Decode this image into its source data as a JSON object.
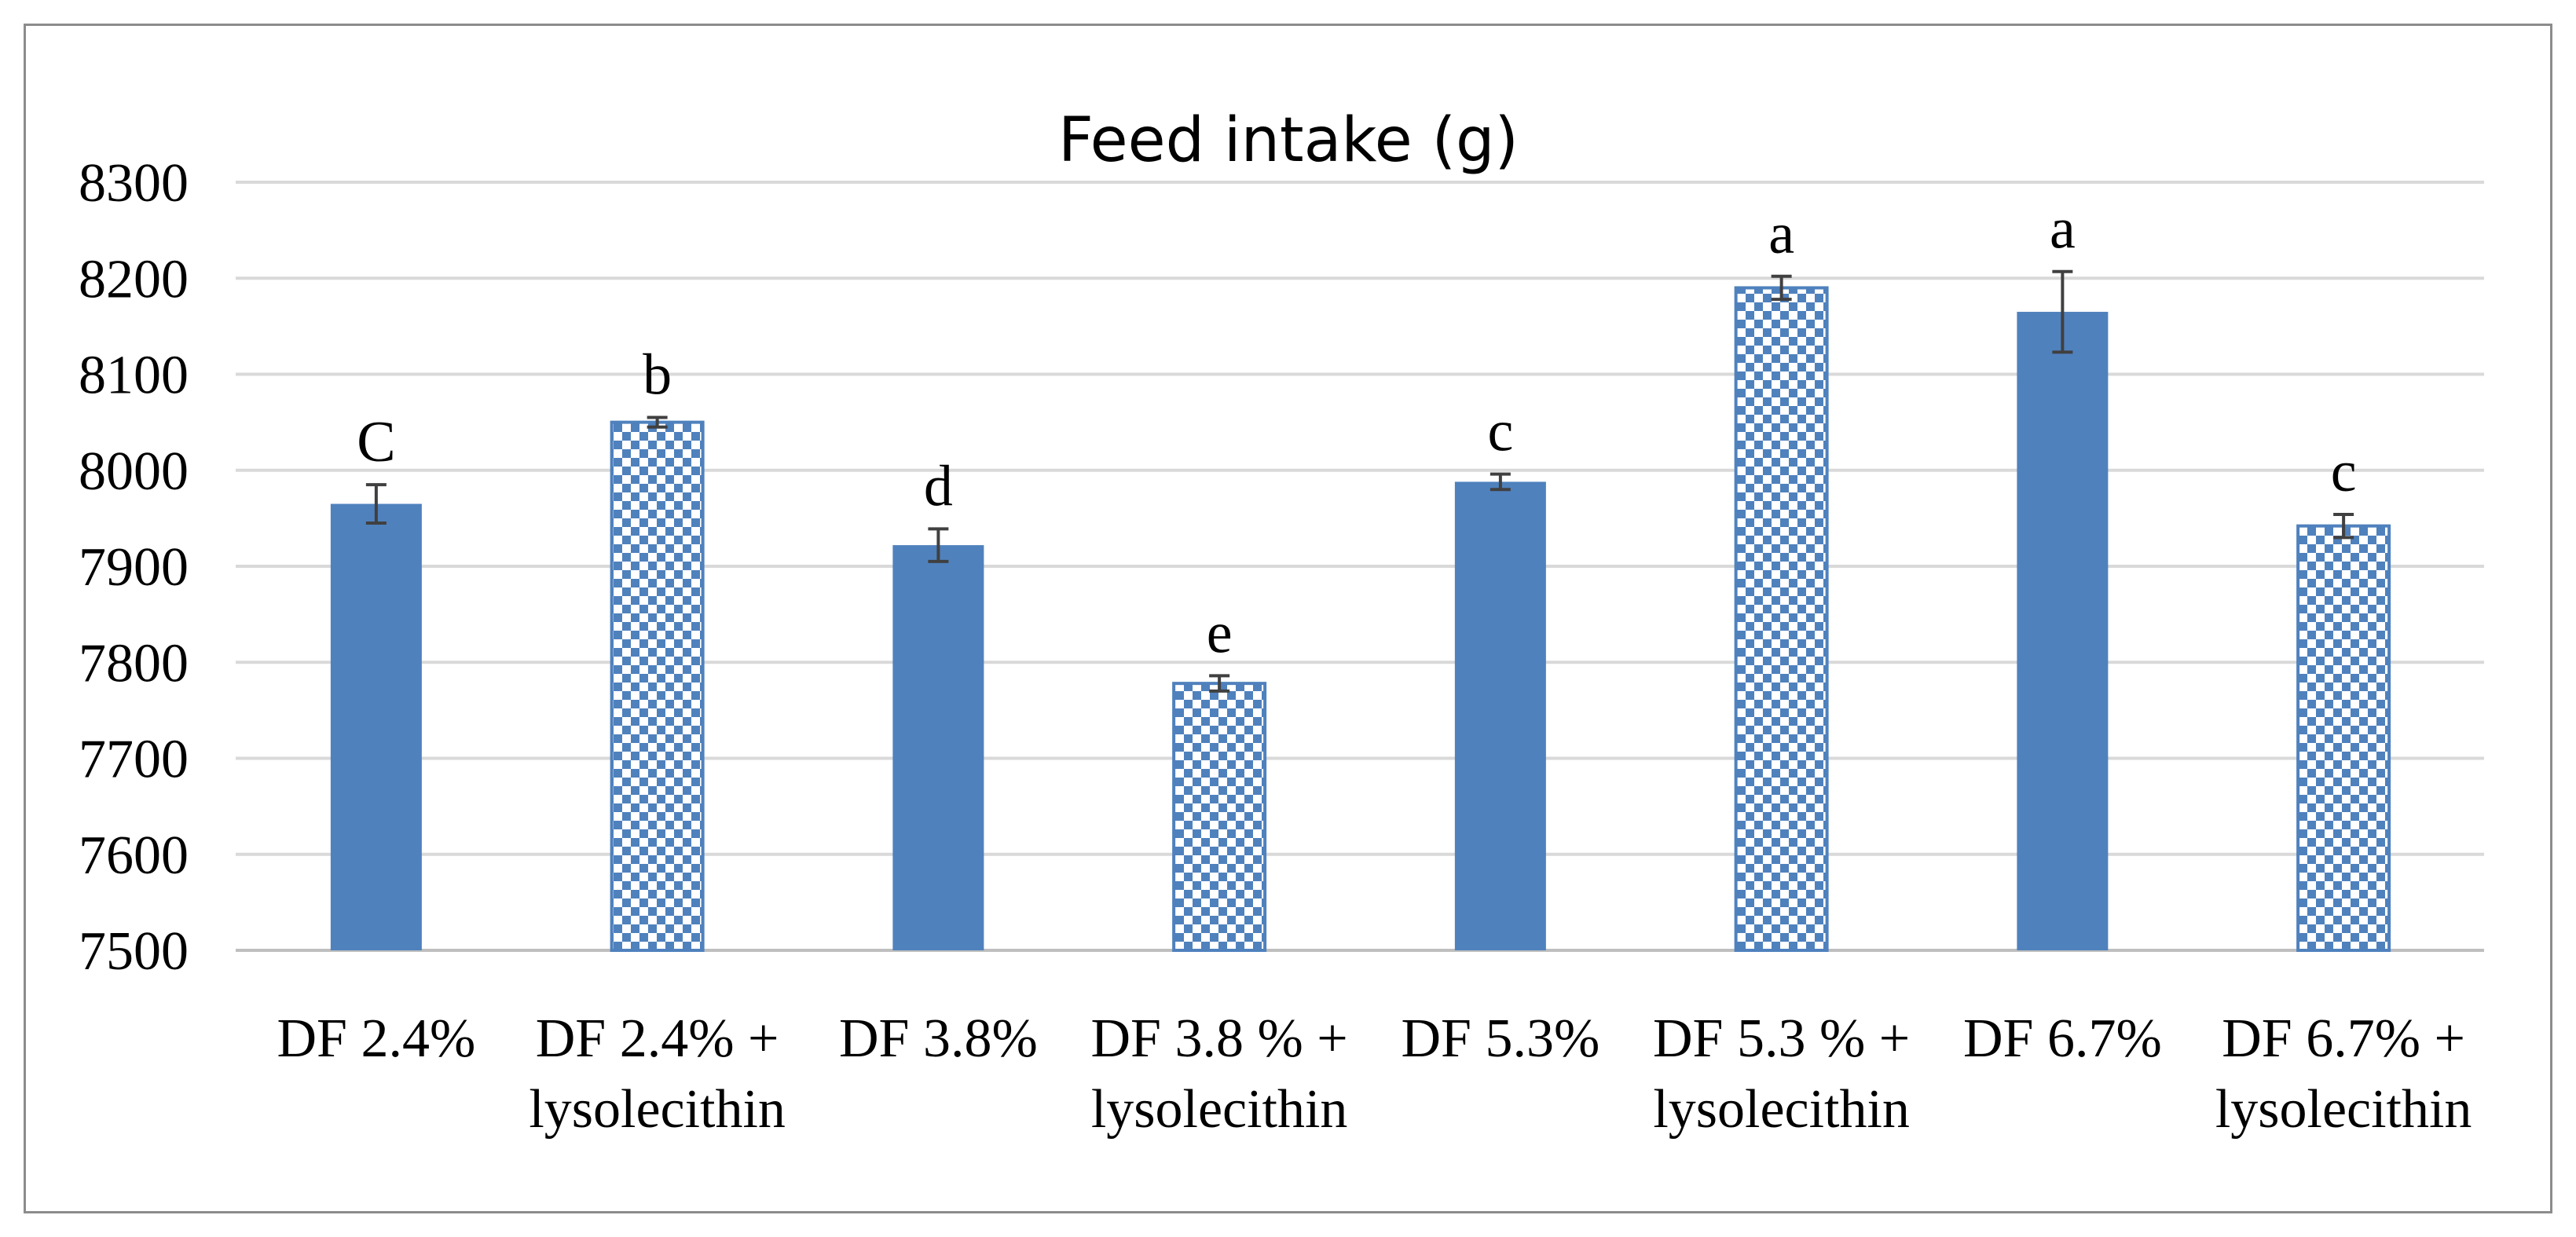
{
  "chart_data": {
    "type": "bar",
    "title": "Feed intake (g)",
    "xlabel": "",
    "ylabel": "",
    "ylim": [
      7500,
      8300
    ],
    "yticks": [
      7500,
      7600,
      7700,
      7800,
      7900,
      8000,
      8100,
      8200,
      8300
    ],
    "grid": true,
    "legend": "none",
    "categories": [
      [
        "DF 2.4%"
      ],
      [
        "DF 2.4% +",
        "lysolecithin"
      ],
      [
        "DF 3.8%"
      ],
      [
        "DF 3.8 % +",
        "lysolecithin"
      ],
      [
        "DF 5.3%"
      ],
      [
        "DF 5.3 % +",
        "lysolecithin"
      ],
      [
        "DF 6.7%"
      ],
      [
        "DF 6.7% +",
        "lysolecithin"
      ]
    ],
    "values": [
      7965,
      8050,
      7922,
      7778,
      7988,
      8190,
      8165,
      7942
    ],
    "errors": [
      20,
      5,
      17,
      8,
      8,
      12,
      42,
      12
    ],
    "significance_labels": [
      "C",
      "b",
      "d",
      "e",
      "c",
      "a",
      "a",
      "c"
    ],
    "patterns": [
      "solid",
      "checkered",
      "solid",
      "checkered",
      "solid",
      "checkered",
      "solid",
      "checkered"
    ],
    "colors": {
      "bar": "#4f81bd",
      "grid": "#d9d9d9",
      "axis": "#bfbfbf",
      "error_bar": "#404040",
      "frame": "#8c8c8c"
    }
  }
}
